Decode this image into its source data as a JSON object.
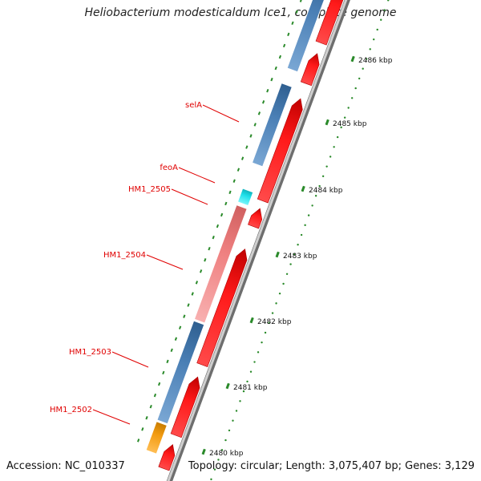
{
  "title": "Heliobacterium modesticaldum Ice1, complete genome",
  "footer": {
    "accession": "Accession: NC_010337",
    "summary": "Topology: circular; Length: 3,075,407 bp; Genes: 3,129"
  },
  "ticks": [
    {
      "label": "2486 kbp"
    },
    {
      "label": "2485 kbp"
    },
    {
      "label": "2484 kbp"
    },
    {
      "label": "2483 kbp"
    },
    {
      "label": "2482 kbp"
    },
    {
      "label": "2481 kbp"
    },
    {
      "label": "2480 kbp"
    }
  ],
  "genes": [
    {
      "label": "selA",
      "color": "#4a7fb5"
    },
    {
      "label": "feoA",
      "color": "#4a7fb5"
    },
    {
      "label": "HM1_2505",
      "color": "#1ee0ea"
    },
    {
      "label": "HM1_2504",
      "color": "#f08080"
    },
    {
      "label": "HM1_2503",
      "color": "#4a7fb5"
    },
    {
      "label": "HM1_2502",
      "color": "#f39c12"
    }
  ],
  "colors": {
    "cds_red": "#ff1a1a",
    "label_red": "#e00000",
    "tick_green": "#2a8a2a",
    "backbone_grey": "#9a9a9a"
  }
}
